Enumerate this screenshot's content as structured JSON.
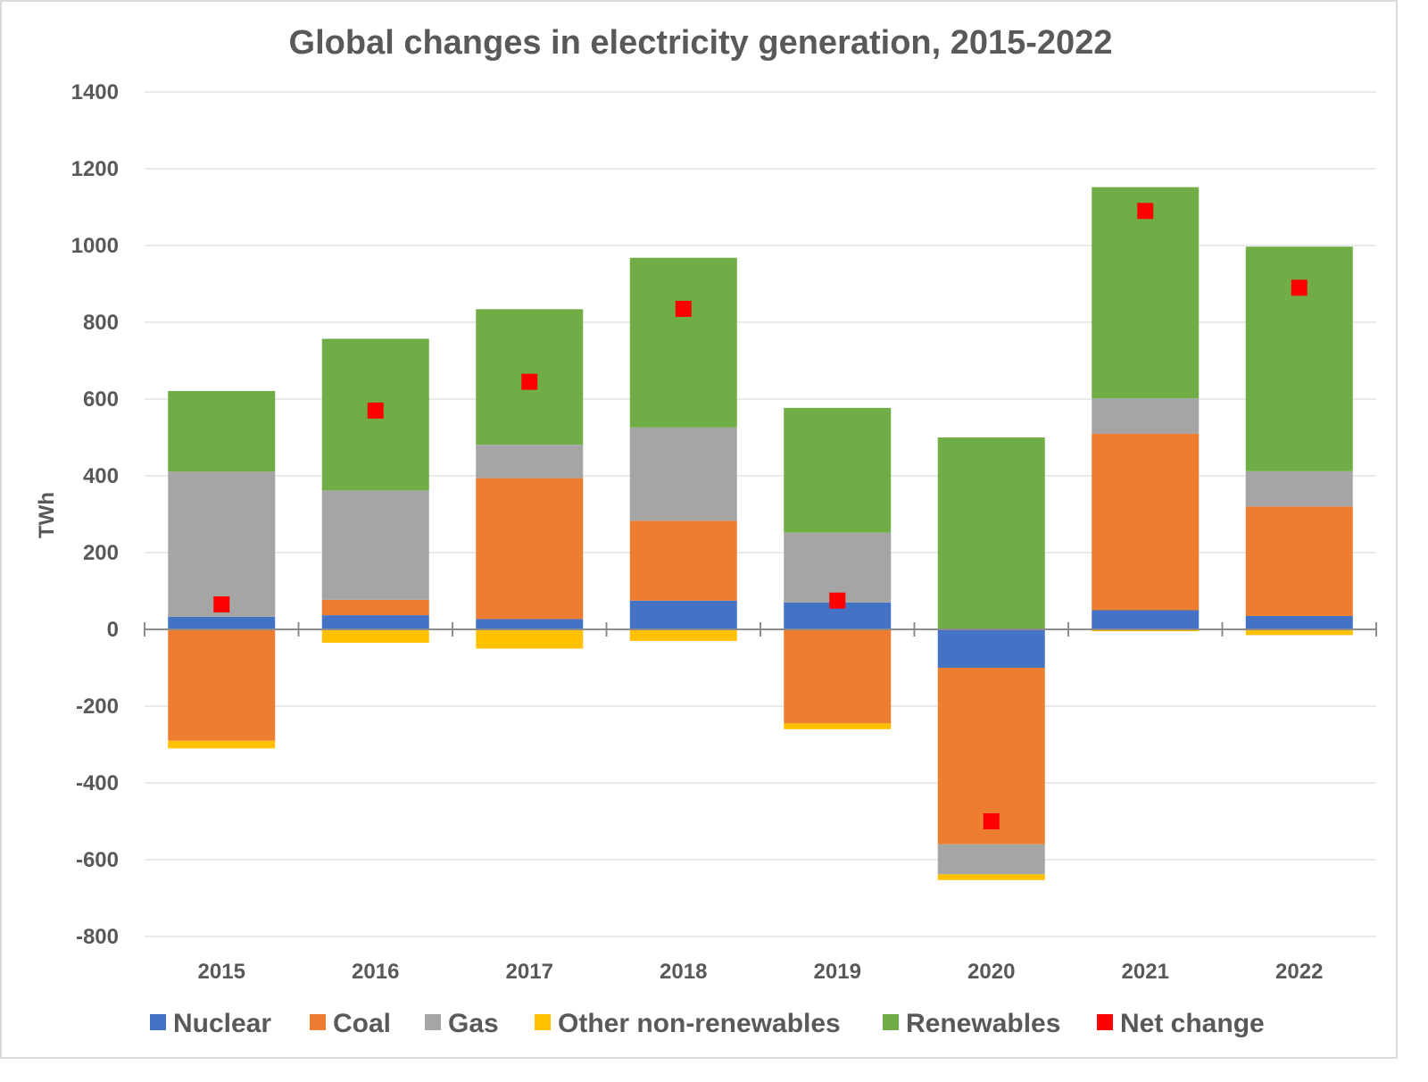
{
  "chart_data": {
    "type": "bar",
    "stacked": true,
    "title": "Global changes in electricity generation, 2015-2022",
    "xlabel": "",
    "ylabel": "TWh",
    "ylim": [
      -800,
      1400
    ],
    "yticks": [
      1400,
      1200,
      1000,
      800,
      600,
      400,
      200,
      0,
      -200,
      -400,
      -600,
      -800
    ],
    "grid": true,
    "legend_position": "bottom",
    "categories": [
      "2015",
      "2016",
      "2017",
      "2018",
      "2019",
      "2020",
      "2021",
      "2022"
    ],
    "series": [
      {
        "name": "Nuclear",
        "color": "#4472C4",
        "values": [
          33,
          37,
          27,
          75,
          70,
          -100,
          50,
          35
        ]
      },
      {
        "name": "Coal",
        "color": "#ED7D31",
        "values": [
          -290,
          40,
          367,
          208,
          -245,
          -460,
          460,
          285
        ]
      },
      {
        "name": "Gas",
        "color": "#A5A5A5",
        "values": [
          378,
          285,
          87,
          243,
          182,
          -78,
          92,
          92
        ]
      },
      {
        "name": "Other non-renewables",
        "color": "#FFC000",
        "values": [
          -20,
          -35,
          -50,
          -30,
          -15,
          -15,
          -5,
          -15
        ]
      },
      {
        "name": "Renewables",
        "color": "#70AD47",
        "values": [
          210,
          395,
          353,
          442,
          325,
          500,
          550,
          585
        ]
      }
    ],
    "net_change": {
      "name": "Net change",
      "color": "#FF0000",
      "values": [
        65,
        570,
        645,
        835,
        75,
        -500,
        1090,
        890
      ]
    }
  }
}
